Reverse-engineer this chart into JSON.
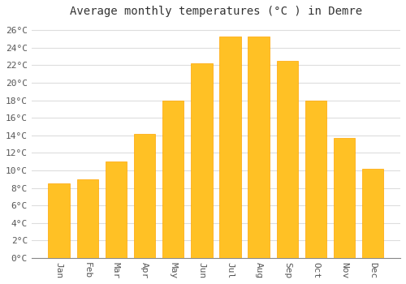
{
  "title": "Average monthly temperatures (°C ) in Demre",
  "months": [
    "Jan",
    "Feb",
    "Mar",
    "Apr",
    "May",
    "Jun",
    "Jul",
    "Aug",
    "Sep",
    "Oct",
    "Nov",
    "Dec"
  ],
  "values": [
    8.5,
    9.0,
    11.0,
    14.2,
    18.0,
    22.2,
    25.3,
    25.3,
    22.5,
    18.0,
    13.7,
    10.2
  ],
  "bar_color": "#FFC125",
  "bar_edge_color": "#FFA500",
  "bar_width": 0.75,
  "ylim": [
    0,
    27
  ],
  "yticks": [
    0,
    2,
    4,
    6,
    8,
    10,
    12,
    14,
    16,
    18,
    20,
    22,
    24,
    26
  ],
  "ytick_labels": [
    "0°C",
    "2°C",
    "4°C",
    "6°C",
    "8°C",
    "10°C",
    "12°C",
    "14°C",
    "16°C",
    "18°C",
    "20°C",
    "22°C",
    "24°C",
    "26°C"
  ],
  "background_color": "#FFFFFF",
  "grid_color": "#DDDDDD",
  "title_fontsize": 10,
  "tick_fontsize": 8,
  "font_family": "monospace",
  "figsize": [
    5.0,
    3.5
  ],
  "dpi": 100
}
